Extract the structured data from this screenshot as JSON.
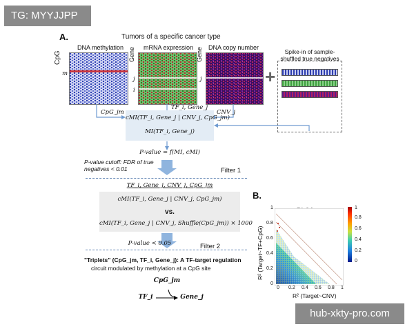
{
  "watermark_tag": "TG: MYYJJPP",
  "watermark_url": "hub-xkty-pro.com",
  "panel_a": {
    "label": "A.",
    "title": "Tumors of a specific cancer type",
    "methylation_title": "DNA methylation",
    "mrna_title": "mRNA expression",
    "cnv_title": "DNA copy number",
    "cpg_axis": "CpG",
    "gene_axis": "Gene",
    "row_m": "m",
    "row_j": "j",
    "row_i": "i",
    "spike_title": "Spike-in of sample-shuffled true negatives",
    "input_cpg": "CpG_jm",
    "input_tf": "TF_i, Gene_j",
    "input_cnv": "CNV_j",
    "cmi_formula": "cMI(TF_i, Gene_j | CNV_j, CpG_jm)",
    "mi_formula": "MI(TF_i, Gene_j)",
    "pvalue_formula": "P-value = f(MI, cMI)",
    "pvalue_cutoff": "P-value cutoff: FDR of true negatives < 0.01",
    "filter1": "Filter 1",
    "quadruple": "TF_i, Gene_j, CNV_j, CpG_jm",
    "cmi_test": "cMI(TF_i, Gene_j | CNV_j, CpG_jm)",
    "vs": "vs.",
    "cmi_shuffle": "cMI(TF_i, Gene_j | CNV_j, Shuffle(CpG_jm)) × 1000",
    "pvalue_thresh": "P-value < 0.05",
    "filter2": "Filter 2",
    "triplets_head": "\"Triplets\" (CpG_jm, TF_i, Gene_j): A TF-target regulation",
    "triplets_body": "circuit modulated by methylation at a CpG site",
    "circuit_cpg": "CpG_jm",
    "circuit_tf": "TF_i",
    "circuit_gene": "Gene_j"
  },
  "panel_b": {
    "label": "B.",
    "title": "BLCA",
    "ylabel": "R² (Target~TF+CpG)",
    "xlabel": "R² (Target~CNV)",
    "x_ticks": [
      "0",
      "0.2",
      "0.4",
      "0.6",
      "0.8",
      "1"
    ],
    "y_ticks": [
      "0",
      "0.2",
      "0.4",
      "0.6",
      "0.8",
      "1"
    ],
    "colorbar_ticks": [
      "1",
      "0.8",
      "0.6",
      "0.4",
      "0.2",
      "0"
    ],
    "colors": {
      "cb_top": "#a50000",
      "cb_mid": "#c8e040",
      "cb_bottom": "#001a8c"
    }
  },
  "colors": {
    "arrow": "#6f9bd1",
    "box_fill": "#e3ecf5",
    "methylation": "#3040b0",
    "mrna": "#40a040",
    "cnv": "#5a1a8a"
  }
}
